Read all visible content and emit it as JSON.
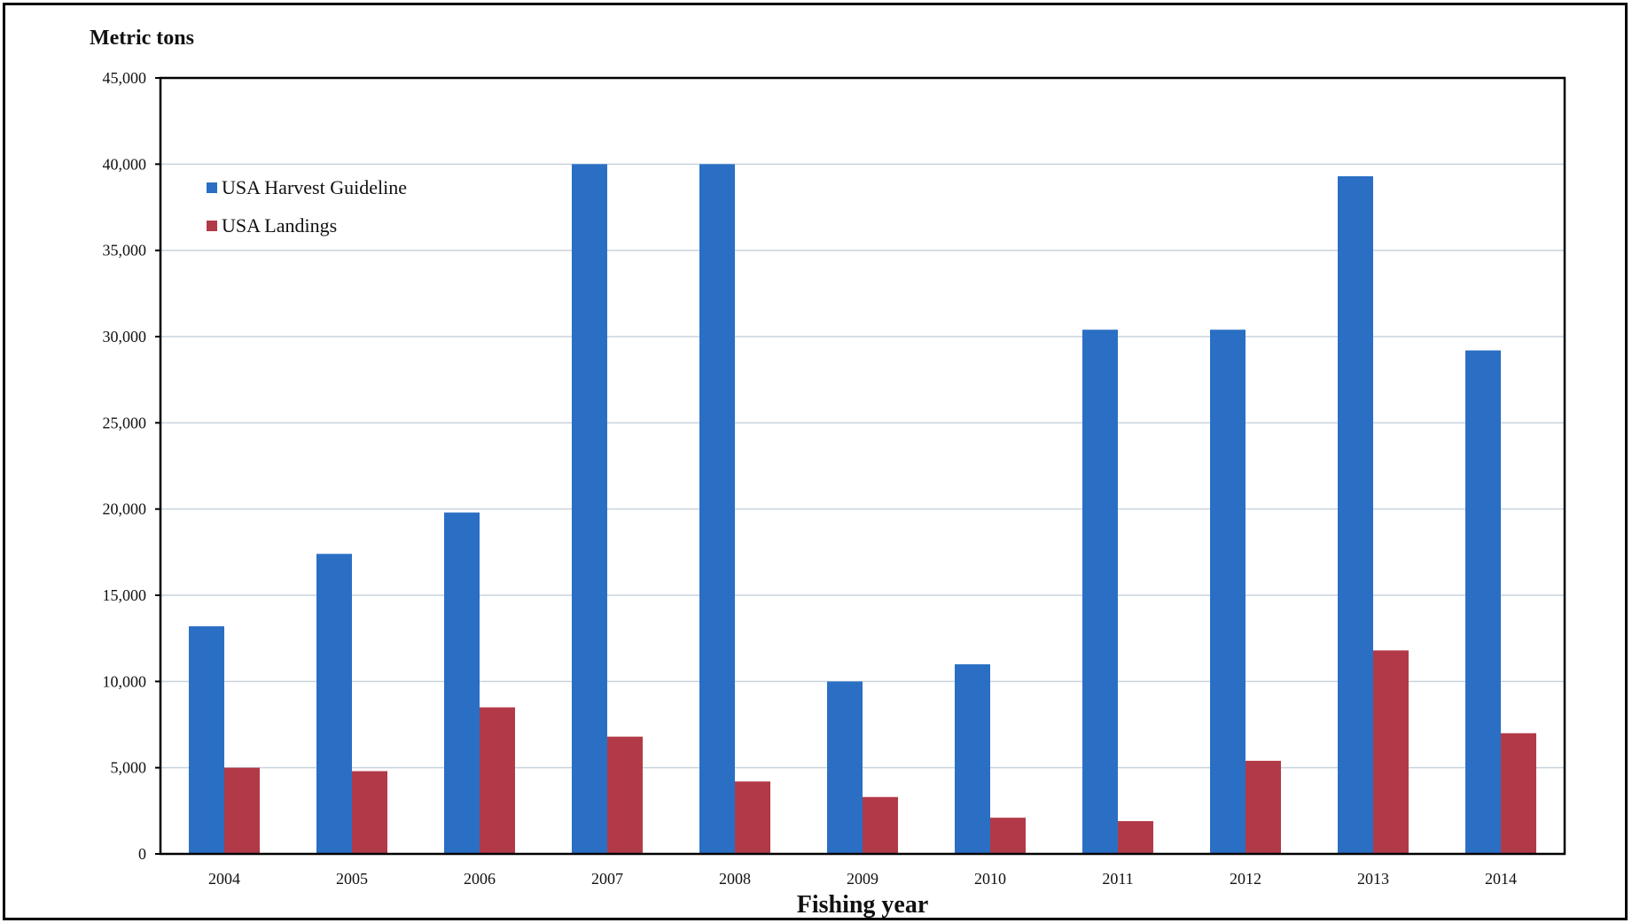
{
  "chart_data": {
    "type": "bar",
    "title": "",
    "ylabel": "Metric tons",
    "xlabel": "Fishing year",
    "ylim": [
      0,
      45000
    ],
    "yticks": [
      0,
      5000,
      10000,
      15000,
      20000,
      25000,
      30000,
      35000,
      40000,
      45000
    ],
    "ytick_labels": [
      "0",
      "5,000",
      "10,000",
      "15,000",
      "20,000",
      "25,000",
      "30,000",
      "35,000",
      "40,000",
      "45,000"
    ],
    "categories": [
      "2004",
      "2005",
      "2006",
      "2007",
      "2008",
      "2009",
      "2010",
      "2011",
      "2012",
      "2013",
      "2014"
    ],
    "series": [
      {
        "name": "USA Harvest Guideline",
        "color": "#2a6fc4",
        "values": [
          13200,
          17400,
          19800,
          40000,
          40000,
          10000,
          11000,
          30400,
          30400,
          39300,
          29200
        ]
      },
      {
        "name": "USA Landings",
        "color": "#b23a48",
        "values": [
          5000,
          4800,
          8500,
          6800,
          4200,
          3300,
          2100,
          1900,
          5400,
          11800,
          7000
        ]
      }
    ],
    "grid": true,
    "legend_position": "top-left"
  }
}
